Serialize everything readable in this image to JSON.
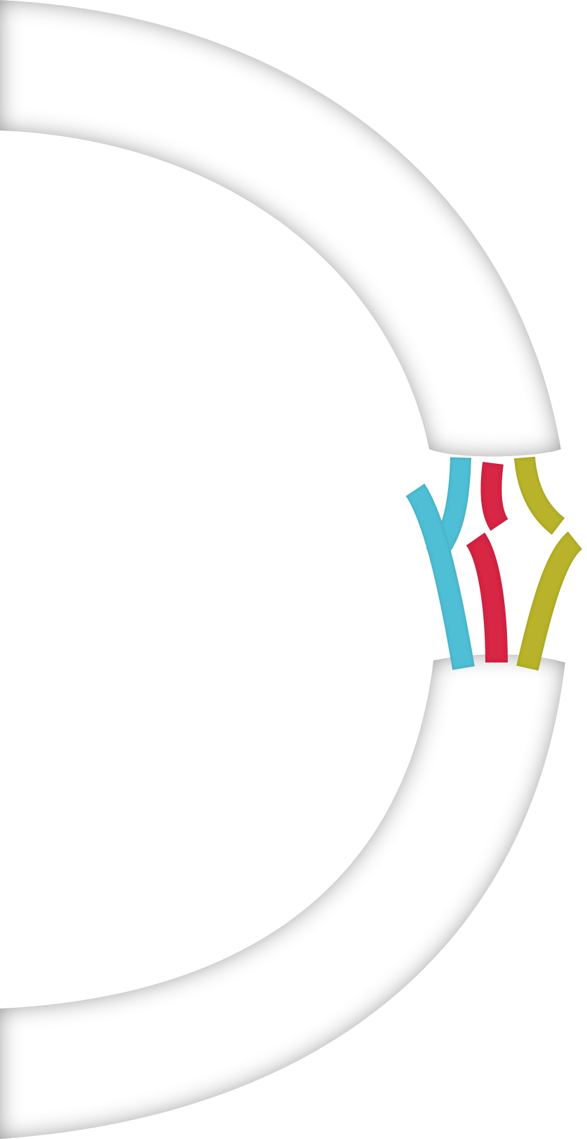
{
  "scene": {
    "subject": "severed-cable-with-exposed-wires",
    "background_color": "#ffffff",
    "cable_sheath_color": "#ffffff",
    "cable_shade_color": "#8a8a8a",
    "wires": [
      {
        "name": "cyan-wire",
        "color": "#4fbfd6"
      },
      {
        "name": "red-wire",
        "color": "#d82645"
      },
      {
        "name": "yellow-wire",
        "color": "#b8b32a"
      }
    ]
  }
}
